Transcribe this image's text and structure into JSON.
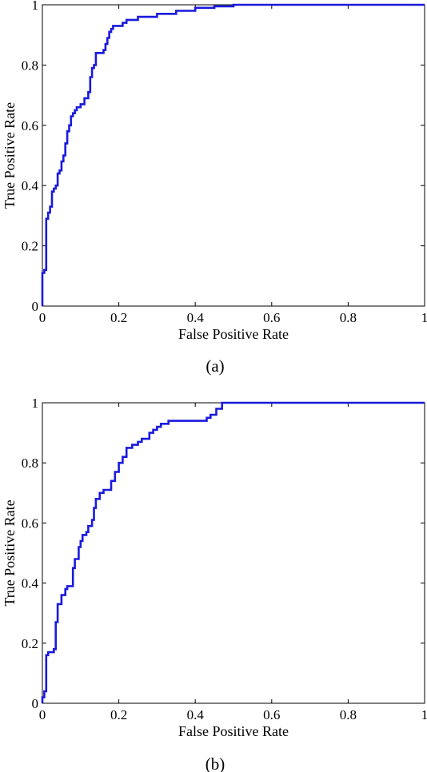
{
  "chart_data": [
    {
      "type": "line",
      "caption": "(a)",
      "xlabel": "False Positive Rate",
      "ylabel": "True Positive Rate",
      "xlim": [
        0,
        1
      ],
      "ylim": [
        0,
        1
      ],
      "xticks": [
        "0",
        "0.2",
        "0.4",
        "0.6",
        "0.8",
        "1"
      ],
      "yticks": [
        "0",
        "0.2",
        "0.4",
        "0.6",
        "0.8",
        "1"
      ],
      "grid": false,
      "color": "#1a1adc",
      "series": [
        {
          "x": [
            0.0,
            0.0,
            0.005,
            0.005,
            0.01,
            0.01,
            0.015,
            0.015,
            0.02,
            0.02,
            0.025,
            0.025,
            0.03,
            0.03,
            0.035,
            0.035,
            0.04,
            0.04,
            0.045,
            0.045,
            0.05,
            0.05,
            0.055,
            0.055,
            0.06,
            0.06,
            0.065,
            0.065,
            0.07,
            0.07,
            0.075,
            0.075,
            0.08,
            0.08,
            0.085,
            0.085,
            0.09,
            0.09,
            0.1,
            0.1,
            0.11,
            0.11,
            0.12,
            0.12,
            0.125,
            0.125,
            0.13,
            0.13,
            0.135,
            0.135,
            0.14,
            0.14,
            0.15,
            0.15,
            0.16,
            0.16,
            0.165,
            0.165,
            0.17,
            0.17,
            0.175,
            0.175,
            0.18,
            0.18,
            0.185,
            0.185,
            0.21,
            0.21,
            0.22,
            0.22,
            0.25,
            0.25,
            0.3,
            0.3,
            0.35,
            0.35,
            0.4,
            0.4,
            0.45,
            0.45,
            0.5,
            0.5,
            1.0
          ],
          "y": [
            0.0,
            0.11,
            0.11,
            0.12,
            0.12,
            0.29,
            0.29,
            0.31,
            0.31,
            0.33,
            0.33,
            0.38,
            0.38,
            0.39,
            0.39,
            0.4,
            0.4,
            0.44,
            0.44,
            0.45,
            0.45,
            0.48,
            0.48,
            0.5,
            0.5,
            0.54,
            0.54,
            0.58,
            0.58,
            0.6,
            0.6,
            0.63,
            0.63,
            0.64,
            0.64,
            0.65,
            0.65,
            0.66,
            0.66,
            0.67,
            0.67,
            0.69,
            0.69,
            0.71,
            0.71,
            0.76,
            0.76,
            0.79,
            0.79,
            0.8,
            0.8,
            0.84,
            0.84,
            0.84,
            0.84,
            0.85,
            0.85,
            0.87,
            0.87,
            0.89,
            0.89,
            0.91,
            0.91,
            0.92,
            0.92,
            0.93,
            0.93,
            0.94,
            0.94,
            0.95,
            0.95,
            0.96,
            0.96,
            0.97,
            0.97,
            0.98,
            0.98,
            0.99,
            0.99,
            0.995,
            0.995,
            1.0,
            1.0
          ]
        }
      ]
    },
    {
      "type": "line",
      "caption": "(b)",
      "xlabel": "False Positive Rate",
      "ylabel": "True Positive Rate",
      "xlim": [
        0,
        1
      ],
      "ylim": [
        0,
        1
      ],
      "xticks": [
        "0",
        "0.2",
        "0.4",
        "0.6",
        "0.8",
        "1"
      ],
      "yticks": [
        "0",
        "0.2",
        "0.4",
        "0.6",
        "0.8",
        "1"
      ],
      "grid": false,
      "color": "#1a1adc",
      "series": [
        {
          "x": [
            0.0,
            0.0,
            0.005,
            0.005,
            0.01,
            0.01,
            0.015,
            0.015,
            0.03,
            0.03,
            0.035,
            0.035,
            0.04,
            0.04,
            0.05,
            0.05,
            0.06,
            0.06,
            0.065,
            0.065,
            0.08,
            0.08,
            0.085,
            0.085,
            0.095,
            0.095,
            0.1,
            0.1,
            0.105,
            0.105,
            0.115,
            0.115,
            0.12,
            0.12,
            0.13,
            0.13,
            0.135,
            0.135,
            0.14,
            0.14,
            0.15,
            0.15,
            0.16,
            0.16,
            0.17,
            0.17,
            0.18,
            0.18,
            0.19,
            0.19,
            0.2,
            0.2,
            0.21,
            0.21,
            0.22,
            0.22,
            0.235,
            0.235,
            0.25,
            0.25,
            0.26,
            0.26,
            0.28,
            0.28,
            0.29,
            0.29,
            0.3,
            0.3,
            0.31,
            0.31,
            0.33,
            0.33,
            0.35,
            0.35,
            0.43,
            0.43,
            0.44,
            0.44,
            0.455,
            0.455,
            0.47,
            0.47,
            1.0
          ],
          "y": [
            0.0,
            0.02,
            0.02,
            0.04,
            0.04,
            0.16,
            0.16,
            0.17,
            0.17,
            0.18,
            0.18,
            0.27,
            0.27,
            0.33,
            0.33,
            0.36,
            0.36,
            0.38,
            0.38,
            0.39,
            0.39,
            0.45,
            0.45,
            0.48,
            0.48,
            0.52,
            0.52,
            0.54,
            0.54,
            0.56,
            0.56,
            0.57,
            0.57,
            0.59,
            0.59,
            0.61,
            0.61,
            0.65,
            0.65,
            0.68,
            0.68,
            0.7,
            0.7,
            0.71,
            0.71,
            0.71,
            0.71,
            0.74,
            0.74,
            0.77,
            0.77,
            0.8,
            0.8,
            0.82,
            0.82,
            0.85,
            0.85,
            0.86,
            0.86,
            0.87,
            0.87,
            0.88,
            0.88,
            0.9,
            0.9,
            0.91,
            0.91,
            0.92,
            0.92,
            0.93,
            0.93,
            0.94,
            0.94,
            0.94,
            0.94,
            0.95,
            0.95,
            0.96,
            0.96,
            0.98,
            0.98,
            1.0,
            1.0
          ]
        }
      ]
    }
  ]
}
